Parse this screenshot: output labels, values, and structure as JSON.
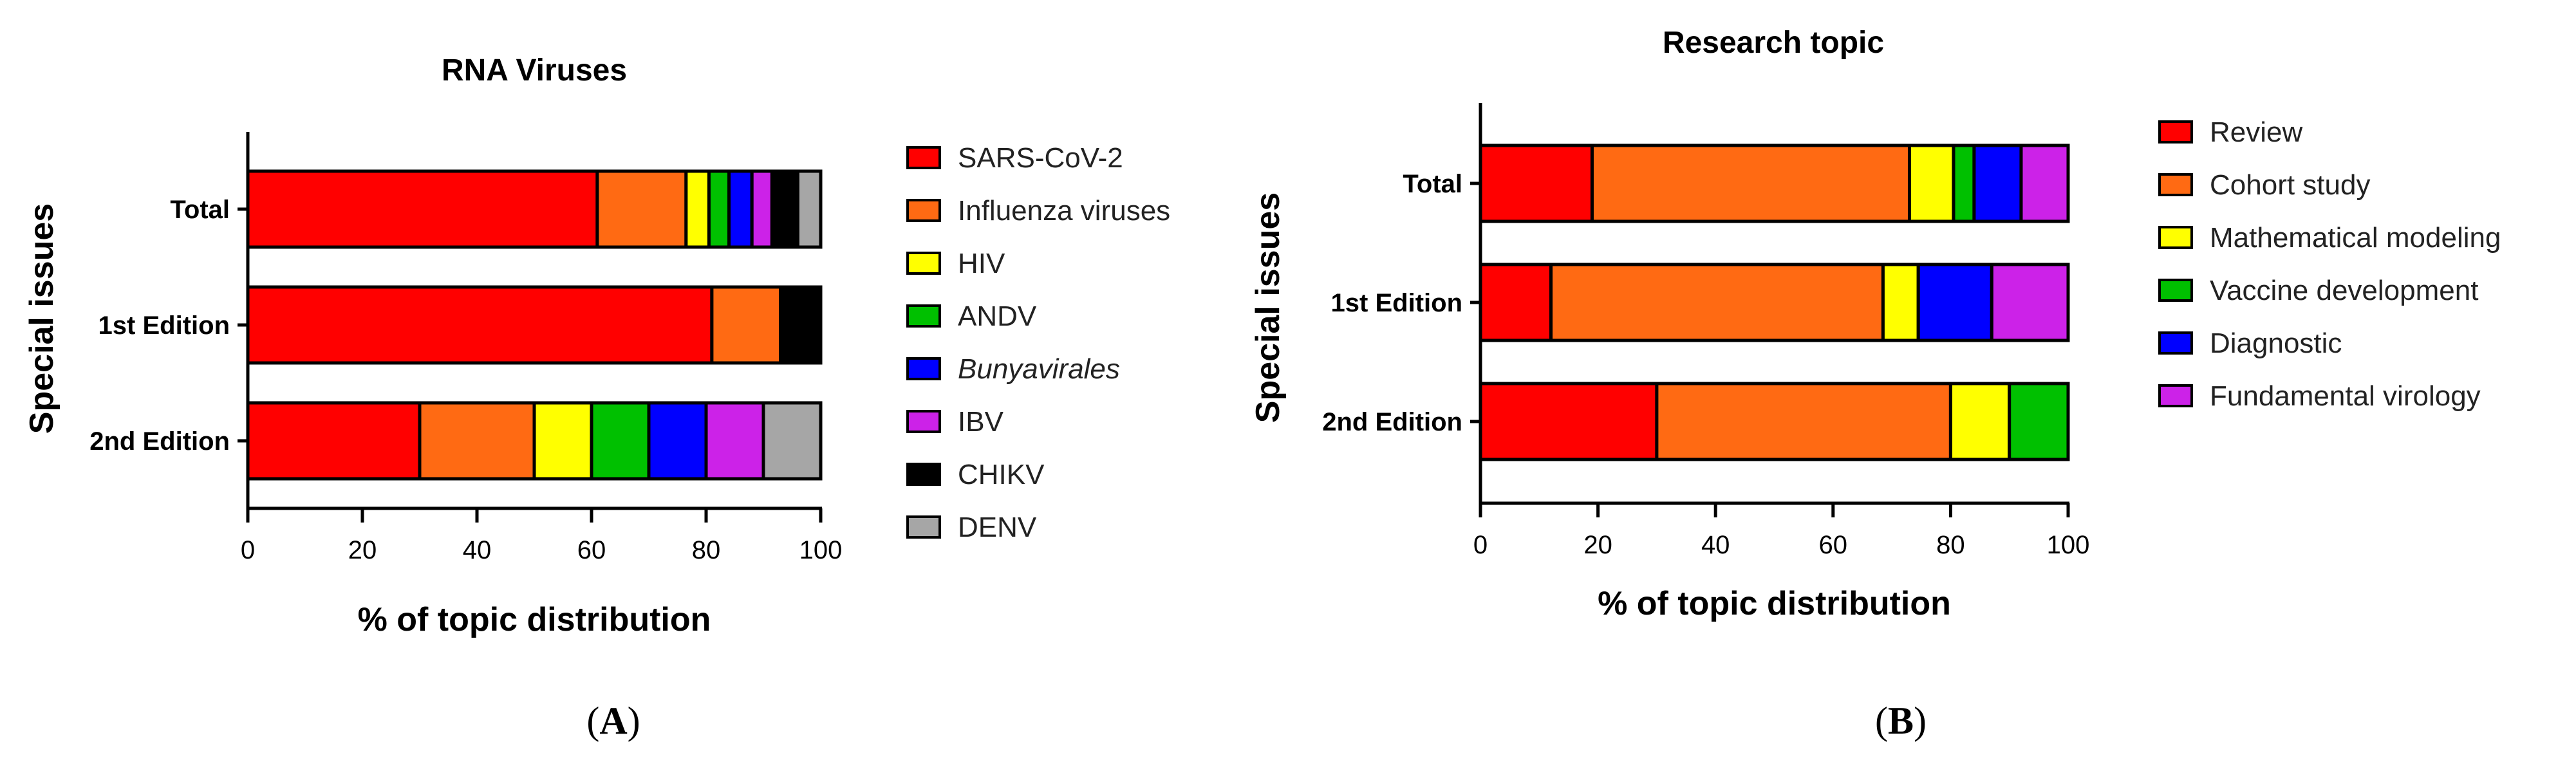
{
  "chart_data": [
    {
      "type": "bar",
      "orientation": "horizontal",
      "stacked": true,
      "panel": "A",
      "title": "RNA Viruses",
      "xlabel": "% of topic distribution",
      "ylabel": "Special issues",
      "xlim": [
        0,
        100
      ],
      "xticks": [
        "0",
        "20",
        "40",
        "60",
        "80",
        "100"
      ],
      "categories": [
        "Total",
        "1st Edition",
        "2nd Edition"
      ],
      "series": [
        {
          "name": "SARS-CoV-2",
          "color": "#ff0000",
          "values": [
            61,
            81,
            30
          ]
        },
        {
          "name": "Influenza viruses",
          "color": "#ff6a13",
          "values": [
            15.5,
            12,
            20
          ]
        },
        {
          "name": "HIV",
          "color": "#ffff00",
          "values": [
            4,
            0,
            10
          ]
        },
        {
          "name": "ANDV",
          "color": "#00c000",
          "values": [
            3.5,
            0,
            10
          ]
        },
        {
          "name": "Bunyavirales",
          "color": "#0000ff",
          "values": [
            4,
            0,
            10
          ],
          "italic": true
        },
        {
          "name": "IBV",
          "color": "#cc22e8",
          "values": [
            3.5,
            0,
            10
          ]
        },
        {
          "name": "CHIKV",
          "color": "#000000",
          "values": [
            4.5,
            7,
            0
          ]
        },
        {
          "name": "DENV",
          "color": "#a6a6a6",
          "values": [
            4,
            0,
            10
          ]
        }
      ]
    },
    {
      "type": "bar",
      "orientation": "horizontal",
      "stacked": true,
      "panel": "B",
      "title": "Research topic",
      "xlabel": "% of topic distribution",
      "ylabel": "Special issues",
      "xlim": [
        0,
        100
      ],
      "xticks": [
        "0",
        "20",
        "40",
        "60",
        "80",
        "100"
      ],
      "categories": [
        "Total",
        "1st Edition",
        "2nd Edition"
      ],
      "series": [
        {
          "name": "Review",
          "color": "#ff0000",
          "values": [
            19,
            12,
            30
          ]
        },
        {
          "name": "Cohort study",
          "color": "#ff6a13",
          "values": [
            54,
            56.5,
            50
          ]
        },
        {
          "name": "Mathematical modeling",
          "color": "#ffff00",
          "values": [
            7.5,
            6,
            10
          ]
        },
        {
          "name": "Vaccine development",
          "color": "#00c000",
          "values": [
            3.5,
            0,
            10
          ]
        },
        {
          "name": "Diagnostic",
          "color": "#0000ff",
          "values": [
            8,
            12.5,
            0
          ]
        },
        {
          "name": "Fundamental virology",
          "color": "#cc22e8",
          "values": [
            8,
            13,
            0
          ]
        }
      ]
    }
  ],
  "panel_labels": {
    "a": {
      "open": "(",
      "letter": "A",
      "close": ")"
    },
    "b": {
      "open": "(",
      "letter": "B",
      "close": ")"
    }
  }
}
